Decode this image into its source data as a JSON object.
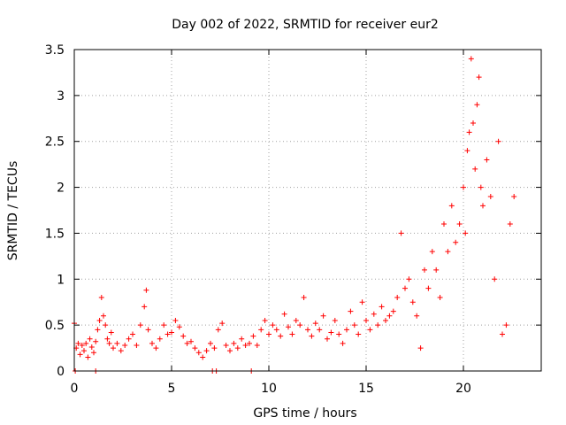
{
  "chart_data": {
    "type": "scatter",
    "title": "Day 002 of 2022, SRMTID for receiver eur2",
    "xlabel": "GPS time / hours",
    "ylabel": "SRMTID / TECUs",
    "xlim": [
      0,
      24
    ],
    "ylim": [
      0,
      3.5
    ],
    "x_ticks": [
      0,
      5,
      10,
      15,
      20
    ],
    "x_tick_labels": [
      "0",
      "5",
      "10",
      "15",
      "20"
    ],
    "y_ticks": [
      0,
      0.5,
      1,
      1.5,
      2,
      2.5,
      3,
      3.5
    ],
    "y_tick_labels": [
      "0",
      "0.5",
      "1",
      "1.5",
      "2",
      "2.5",
      "3",
      "3.5"
    ],
    "grid": true,
    "marker": "+",
    "color": "#ff0000",
    "series": [
      {
        "name": "SRMTID",
        "x": [
          0.0,
          0.1,
          0.2,
          0.3,
          0.4,
          0.5,
          0.6,
          0.7,
          0.8,
          0.9,
          1.0,
          1.1,
          1.2,
          1.3,
          1.4,
          1.5,
          1.6,
          1.7,
          1.8,
          1.9,
          2.0,
          2.2,
          2.4,
          2.6,
          2.8,
          3.0,
          3.2,
          3.4,
          3.6,
          3.7,
          3.8,
          4.0,
          4.2,
          4.4,
          4.6,
          4.8,
          5.0,
          5.2,
          5.4,
          5.6,
          5.8,
          6.0,
          6.2,
          6.4,
          6.6,
          6.8,
          7.0,
          7.2,
          7.4,
          7.6,
          7.8,
          8.0,
          8.2,
          8.4,
          8.6,
          8.8,
          9.0,
          9.2,
          9.4,
          9.6,
          9.8,
          10.0,
          10.2,
          10.4,
          10.6,
          10.8,
          11.0,
          11.2,
          11.4,
          11.6,
          11.8,
          12.0,
          12.2,
          12.4,
          12.6,
          12.8,
          13.0,
          13.2,
          13.4,
          13.6,
          13.8,
          14.0,
          14.2,
          14.4,
          14.6,
          14.8,
          15.0,
          15.2,
          15.4,
          15.6,
          15.8,
          16.0,
          16.2,
          16.4,
          16.6,
          16.8,
          17.0,
          17.2,
          17.4,
          17.6,
          17.8,
          18.0,
          18.2,
          18.4,
          18.6,
          18.8,
          19.0,
          19.2,
          19.4,
          19.6,
          19.8,
          20.0,
          20.1,
          20.2,
          20.3,
          20.4,
          20.5,
          20.6,
          20.7,
          20.8,
          20.9,
          21.0,
          21.2,
          21.4,
          21.6,
          21.8,
          22.0,
          22.2,
          22.4,
          22.6,
          0.05,
          1.1,
          7.1,
          7.3,
          9.1
        ],
        "y": [
          0.52,
          0.25,
          0.3,
          0.18,
          0.28,
          0.22,
          0.3,
          0.15,
          0.35,
          0.26,
          0.2,
          0.32,
          0.45,
          0.55,
          0.8,
          0.6,
          0.5,
          0.35,
          0.3,
          0.42,
          0.25,
          0.3,
          0.22,
          0.28,
          0.35,
          0.4,
          0.28,
          0.5,
          0.7,
          0.88,
          0.45,
          0.3,
          0.25,
          0.35,
          0.5,
          0.4,
          0.42,
          0.55,
          0.48,
          0.38,
          0.3,
          0.32,
          0.25,
          0.2,
          0.15,
          0.22,
          0.3,
          0.25,
          0.45,
          0.52,
          0.28,
          0.22,
          0.3,
          0.25,
          0.35,
          0.28,
          0.3,
          0.38,
          0.28,
          0.45,
          0.55,
          0.4,
          0.5,
          0.45,
          0.38,
          0.62,
          0.48,
          0.4,
          0.55,
          0.5,
          0.8,
          0.45,
          0.38,
          0.52,
          0.45,
          0.6,
          0.35,
          0.42,
          0.55,
          0.4,
          0.3,
          0.45,
          0.65,
          0.5,
          0.4,
          0.75,
          0.55,
          0.45,
          0.62,
          0.5,
          0.7,
          0.55,
          0.6,
          0.65,
          0.8,
          1.5,
          0.9,
          1.0,
          0.75,
          0.6,
          0.25,
          1.1,
          0.9,
          1.3,
          1.1,
          0.8,
          1.6,
          1.3,
          1.8,
          1.4,
          1.6,
          2.0,
          1.5,
          2.4,
          2.6,
          3.4,
          2.7,
          2.2,
          2.9,
          3.2,
          2.0,
          1.8,
          2.3,
          1.9,
          1.0,
          2.5,
          0.4,
          0.5,
          1.6,
          1.9,
          0.0,
          0.0,
          0.0,
          0.0,
          0.0
        ]
      }
    ]
  }
}
